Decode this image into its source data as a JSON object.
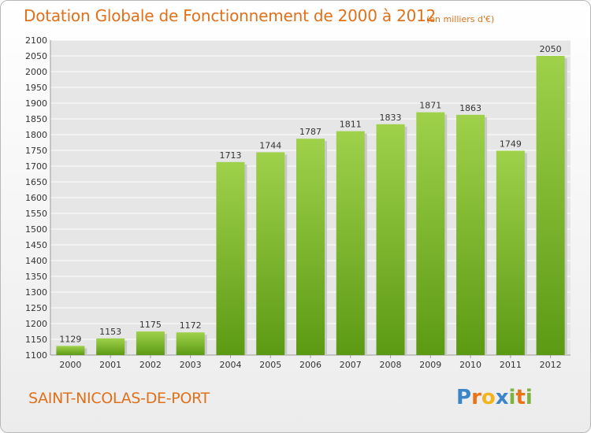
{
  "header": {
    "title": "Dotation Globale de Fonctionnement de 2000 à 2012",
    "subtitle": "(en milliers d'€)"
  },
  "footer": {
    "commune": "SAINT-NICOLAS-DE-PORT",
    "logo_text": "Proxiti",
    "logo_letters": [
      {
        "ch": "P",
        "color": "#3b86c8"
      },
      {
        "ch": "r",
        "color": "#e8731a"
      },
      {
        "ch": "o",
        "color": "#f2b51c"
      },
      {
        "ch": "x",
        "color": "#3b86c8"
      },
      {
        "ch": "i",
        "color": "#7cb342"
      },
      {
        "ch": "t",
        "color": "#e8731a"
      },
      {
        "ch": "i",
        "color": "#7cb342"
      }
    ]
  },
  "colors": {
    "accent": "#e0701a",
    "bar_top": "#9fd14b",
    "bar_bottom": "#5c9a14"
  },
  "chart_data": {
    "type": "bar",
    "categories": [
      "2000",
      "2001",
      "2002",
      "2003",
      "2004",
      "2005",
      "2006",
      "2007",
      "2008",
      "2009",
      "2010",
      "2011",
      "2012"
    ],
    "values": [
      1129,
      1153,
      1175,
      1172,
      1713,
      1744,
      1787,
      1811,
      1833,
      1871,
      1863,
      1749,
      2050
    ],
    "ylim": [
      1100,
      2100
    ],
    "ytick_step": 50,
    "grid": true,
    "legend": "none"
  }
}
